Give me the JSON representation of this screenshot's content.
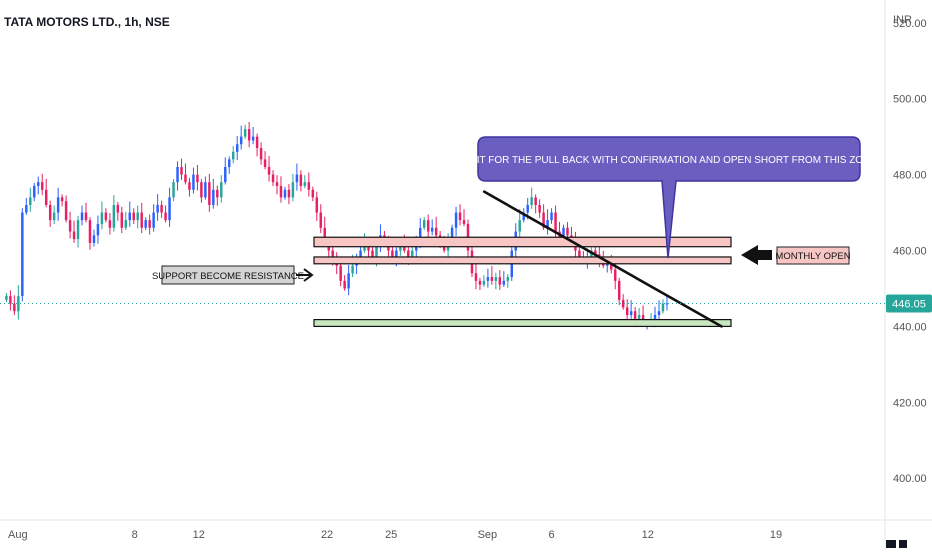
{
  "header": {
    "title": "TATA MOTORS LTD., 1h, NSE",
    "currency": "INR"
  },
  "price_tag": {
    "label": "446.05",
    "value": 446.05,
    "color": "#26a69a"
  },
  "annotations": {
    "callout": "WAIT FOR THE PULL BACK WITH CONFIRMATION AND OPEN SHORT FROM THIS ZONE",
    "support_label": "SUPPORT BECOME RESISTANCE",
    "monthly_label": "MONTHLY OPEN"
  },
  "colors": {
    "up": "#26a69a",
    "up_candle": "#2962ff",
    "down": "#e91e63",
    "resistance_zone": "#f8c5c5",
    "support_zone": "#c8e6c0",
    "callout_bg": "#6a5fc1",
    "callout_border": "#3f35a0"
  },
  "chart_data": {
    "type": "candlestick",
    "title": "TATA MOTORS LTD., 1h, NSE",
    "ylabel": "INR",
    "ylim": [
      389,
      526
    ],
    "y_ticks": [
      400,
      420,
      440,
      460,
      480,
      500,
      520
    ],
    "y_tick_labels": [
      "400.00",
      "420.00",
      "440.00",
      "460.00",
      "480.00",
      "500.00",
      "520.00"
    ],
    "x_ticks": [
      {
        "label": "Aug",
        "t": 0
      },
      {
        "label": "8",
        "t": 4
      },
      {
        "label": "12",
        "t": 6
      },
      {
        "label": "22",
        "t": 10
      },
      {
        "label": "25",
        "t": 12
      },
      {
        "label": "Sep",
        "t": 15
      },
      {
        "label": "6",
        "t": 17
      },
      {
        "label": "12",
        "t": 20
      },
      {
        "label": "19",
        "t": 24
      }
    ],
    "grid": false,
    "last_price": 446.05,
    "series": [
      {
        "name": "",
        "close": [
          448,
          446,
          444,
          448,
          470,
          472,
          474,
          477,
          478,
          476,
          472,
          468,
          470,
          474,
          473,
          468,
          465,
          463,
          468,
          470,
          468,
          462,
          464,
          467,
          470,
          468,
          466,
          472,
          470,
          466,
          468,
          470,
          468,
          470,
          466,
          468,
          466,
          470,
          472,
          470,
          468,
          474,
          478,
          482,
          480,
          478,
          476,
          480,
          478,
          474,
          478,
          472,
          476,
          474,
          478,
          482,
          484,
          486,
          488,
          490,
          492,
          489,
          490,
          487,
          484,
          482,
          480,
          478,
          477,
          474,
          476,
          474,
          478,
          480,
          477,
          478,
          476,
          474,
          470,
          466,
          462,
          460,
          457,
          456,
          452,
          450,
          454,
          456,
          458,
          460,
          462,
          460,
          458,
          461,
          464,
          462,
          460,
          458,
          460,
          462,
          460,
          458,
          460,
          462,
          466,
          468,
          465,
          466,
          464,
          462,
          460,
          462,
          466,
          470,
          468,
          467,
          460,
          454,
          452,
          451,
          452,
          453,
          452,
          453,
          451,
          452,
          453,
          460,
          465,
          468,
          470,
          472,
          474,
          472,
          470,
          466,
          468,
          470,
          465,
          463,
          466,
          464,
          462,
          460,
          458,
          457,
          458,
          460,
          459,
          457,
          456,
          457,
          455,
          452,
          447,
          445,
          443,
          444,
          442,
          443,
          441,
          441,
          442,
          443,
          444,
          446,
          446.05
        ],
        "up_color": "#26a69a",
        "down_color": "#e91e63"
      }
    ],
    "zones": [
      {
        "name": "resistance-upper",
        "low": 461,
        "high": 463.5
      },
      {
        "name": "resistance-lower",
        "low": 456.5,
        "high": 458.3
      },
      {
        "name": "support",
        "low": 440,
        "high": 441.8
      }
    ],
    "trendline": {
      "from": {
        "t": 14.9,
        "price": 475.5
      },
      "to": {
        "t": 22.3,
        "price": 440
      }
    }
  }
}
